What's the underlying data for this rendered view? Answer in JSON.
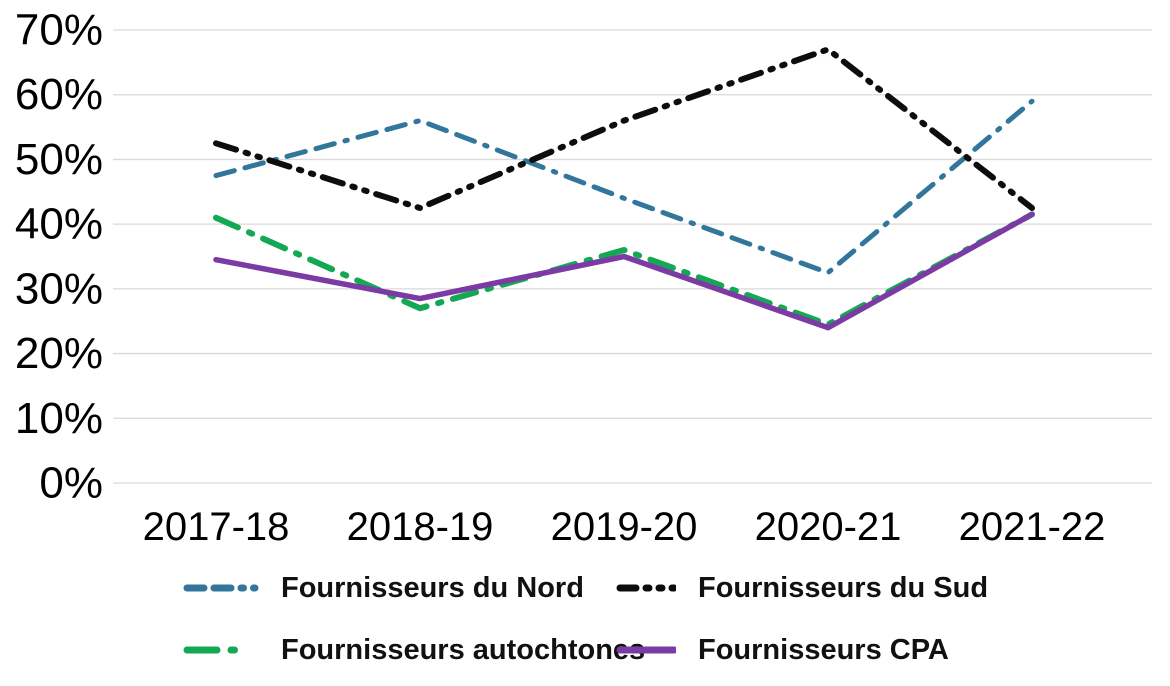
{
  "chart_data": {
    "type": "line",
    "title": "",
    "xlabel": "",
    "ylabel": "",
    "categories": [
      "2017-18",
      "2018-19",
      "2019-20",
      "2020-21",
      "2021-22"
    ],
    "series": [
      {
        "name": "Fournisseurs du Nord",
        "color": "#33769b",
        "dash": "dash-dash-dot",
        "values": [
          47.5,
          56,
          44,
          32.5,
          59
        ]
      },
      {
        "name": "Fournisseurs du Sud",
        "color": "#0d0d0d",
        "dash": "dash-dot-dot",
        "values": [
          52.5,
          42.5,
          56,
          67,
          42.5
        ]
      },
      {
        "name": "Fournisseurs autochtones",
        "color": "#14a855",
        "dash": "dash-dot",
        "values": [
          41,
          27,
          36,
          24.5,
          41.5
        ]
      },
      {
        "name": "Fournisseurs CPA",
        "color": "#7b3aa4",
        "dash": "solid",
        "values": [
          34.5,
          28.5,
          35,
          24,
          41.5
        ]
      }
    ],
    "ylim": [
      0,
      70
    ],
    "ytick_step": 10,
    "ytick_labels": [
      "0%",
      "10%",
      "20%",
      "30%",
      "40%",
      "50%",
      "60%",
      "70%"
    ],
    "grid": "horizontal",
    "gridline_color": "#d9d9d9",
    "text_color": "#000000",
    "legend_position": "bottom",
    "legend_rows": [
      [
        "Fournisseurs du Nord",
        "Fournisseurs du Sud"
      ],
      [
        "Fournisseurs autochtones",
        "Fournisseurs CPA"
      ]
    ]
  }
}
